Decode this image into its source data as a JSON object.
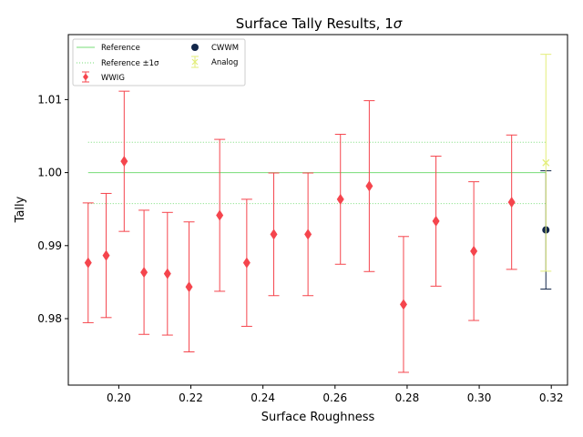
{
  "chart_data": {
    "type": "scatter",
    "title_main": "Surface Tally Results, 1",
    "title_symbol": "σ",
    "xlabel": "Surface Roughness",
    "ylabel": "Tally",
    "xlim": [
      0.186,
      0.3245
    ],
    "ylim": [
      0.9709,
      1.0189
    ],
    "xticks": [
      0.2,
      0.22,
      0.24,
      0.26,
      0.28,
      0.3,
      0.32
    ],
    "xtick_labels": [
      "0.20",
      "0.22",
      "0.24",
      "0.26",
      "0.28",
      "0.30",
      "0.32"
    ],
    "yticks": [
      0.98,
      0.99,
      1.0,
      1.01
    ],
    "ytick_labels": [
      "0.98",
      "0.99",
      "1.00",
      "1.01"
    ],
    "grid": false,
    "legend_position": "top-left",
    "reference": {
      "name": "Reference",
      "value": 1.0,
      "xrange": [
        0.1915,
        0.3185
      ],
      "color": "#77dd77"
    },
    "reference_band": {
      "name": "Reference ±1σ",
      "lower": 0.99575,
      "upper": 1.00415,
      "color": "#77dd77"
    },
    "series": [
      {
        "name": "WWIG",
        "color": "#f5454d",
        "marker": "diamond",
        "x": [
          0.1915,
          0.1965,
          0.2015,
          0.207,
          0.2135,
          0.2195,
          0.228,
          0.2355,
          0.243,
          0.2525,
          0.2615,
          0.2695,
          0.279,
          0.288,
          0.2985,
          0.309
        ],
        "y": [
          0.98765,
          0.98865,
          1.00155,
          0.98635,
          0.98615,
          0.98435,
          0.99415,
          0.98765,
          0.99155,
          0.99155,
          0.99635,
          0.99815,
          0.98195,
          0.99335,
          0.98925,
          0.99595
        ],
        "err": [
          0.0082,
          0.0085,
          0.0096,
          0.0085,
          0.0084,
          0.0089,
          0.0104,
          0.0087,
          0.0084,
          0.0084,
          0.0089,
          0.0117,
          0.0093,
          0.0089,
          0.0095,
          0.0092
        ]
      },
      {
        "name": "CWWM",
        "color": "#13274a",
        "marker": "circle",
        "x": [
          0.3185
        ],
        "y": [
          0.99215
        ],
        "err": [
          0.0081
        ]
      },
      {
        "name": "Analog",
        "color": "#e3ee7a",
        "marker": "x",
        "x": [
          0.3185
        ],
        "y": [
          1.00135
        ],
        "err": [
          0.01485
        ]
      }
    ]
  }
}
